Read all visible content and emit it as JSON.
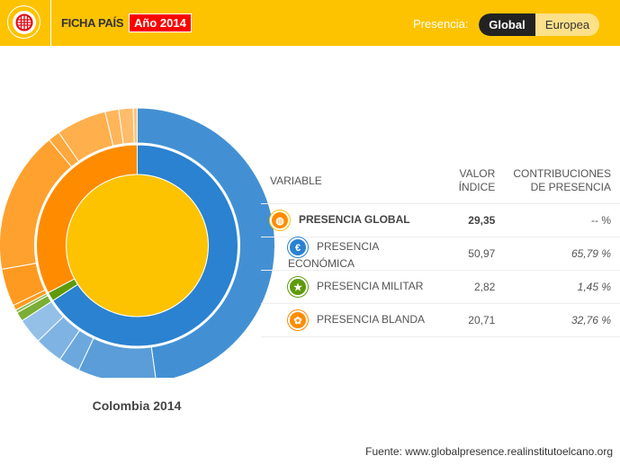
{
  "header": {
    "title": "FICHA PAÍS",
    "year_badge": "Año 2014",
    "presence_label": "Presencia:",
    "toggle": [
      "Global",
      "Europea"
    ],
    "active": "Global"
  },
  "table": {
    "headers": {
      "variable": "VARIABLE",
      "valor": "VALOR ÍNDICE",
      "valor_l1": "VALOR",
      "valor_l2": "ÍNDICE",
      "contrib_l1": "CONTRIBUCIONES",
      "contrib_l2": "DE PRESENCIA"
    },
    "rows": [
      {
        "icon": "globe-icon",
        "label": "PRESENCIA GLOBAL",
        "value": "29,35",
        "contrib": "-- %",
        "color": "#FDC300"
      },
      {
        "icon": "euro-icon",
        "label": "PRESENCIA ECONÓMICA",
        "value": "50,97",
        "contrib": "65,79 %",
        "color": "#2A82D0"
      },
      {
        "icon": "star-icon",
        "label": "PRESENCIA MILITAR",
        "value": "2,82",
        "contrib": "1,45 %",
        "color": "#5E9A0A"
      },
      {
        "icon": "people-icon",
        "label": "PRESENCIA BLANDA",
        "value": "20,71",
        "contrib": "32,76 %",
        "color": "#FF8C00"
      }
    ]
  },
  "chart_data": {
    "type": "sunburst",
    "title": "Colombia 2014",
    "center": {
      "name": "Presencia global",
      "color": "#FDC300"
    },
    "series": [
      {
        "name": "Económica",
        "value": 65.79,
        "color": "#2A82D0",
        "children": [
          47.8,
          9.2,
          2.5,
          3.3,
          3.0
        ],
        "child_colors": [
          "#4290D3",
          "#5A9DD8",
          "#6CA8DE",
          "#7FB3E3",
          "#94C0E8"
        ]
      },
      {
        "name": "Militar",
        "value": 1.45,
        "color": "#5E9A0A",
        "children": [
          1.1,
          0.35
        ],
        "child_colors": [
          "#7AAE35",
          "#90BD55"
        ]
      },
      {
        "name": "Blanda",
        "value": 32.76,
        "color": "#FF8C00",
        "children": [
          0.6,
          4.4,
          16.7,
          1.4,
          5.9,
          1.6,
          1.7,
          0.46
        ],
        "child_colors": [
          "#FF9A20",
          "#FF9A20",
          "#FFA12E",
          "#FFA83D",
          "#FFAF4C",
          "#FFB65B",
          "#FFBC6A",
          "#FFC379"
        ]
      }
    ]
  },
  "footer": {
    "source": "Fuente: www.globalpresence.realinstitutoelcano.org"
  }
}
